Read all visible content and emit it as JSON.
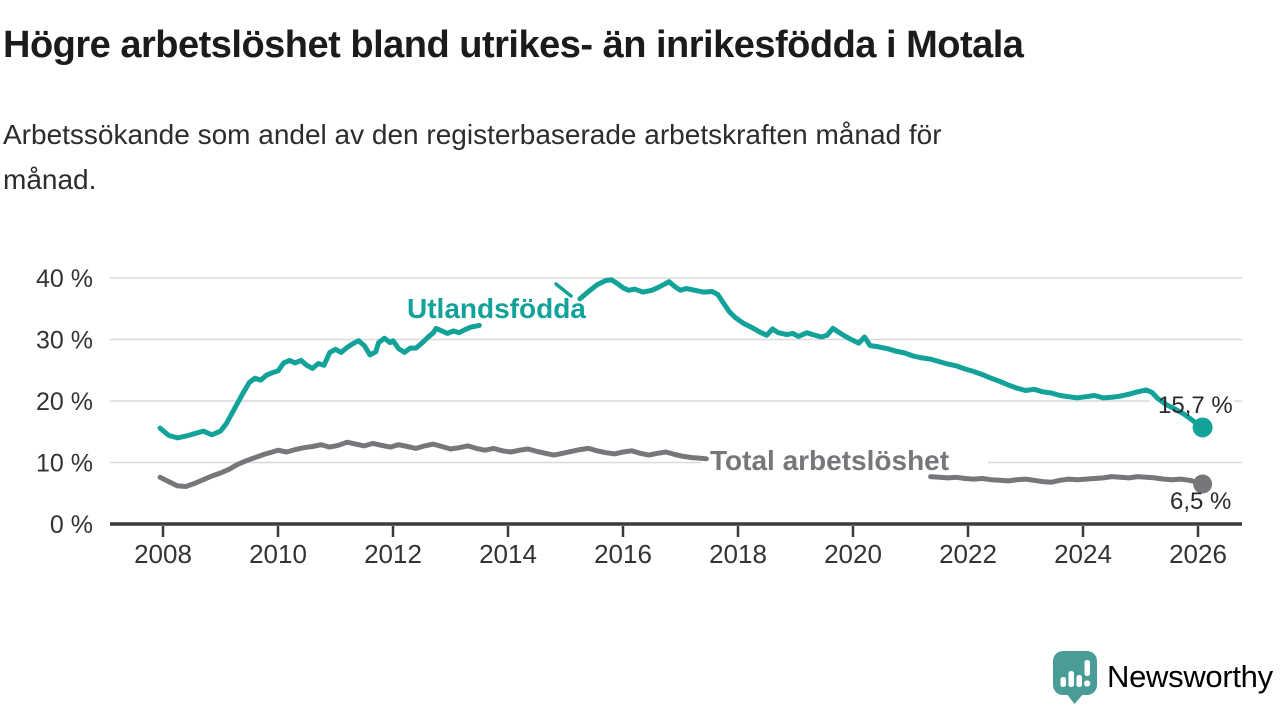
{
  "header": {
    "title": "Högre arbetslöshet bland utrikes- än inrikesfödda i Motala",
    "subtitle_lines": [
      "Arbetssökande som andel av den registerbaserade arbetskraften månad för",
      "månad."
    ]
  },
  "footer": {
    "brand": "Newsworthy",
    "brand_color": "#4a9c96"
  },
  "chart_data": {
    "type": "line",
    "title": "Högre arbetslöshet bland utrikes- än inrikesfödda i Motala",
    "xlabel": "",
    "ylabel": "",
    "grid": "horizontal",
    "legend_position": "inline-labels",
    "xlim": [
      2007.8,
      2026.8
    ],
    "ylim": [
      0,
      42
    ],
    "x_ticks": [
      2008,
      2010,
      2012,
      2014,
      2016,
      2018,
      2020,
      2022,
      2024,
      2026
    ],
    "y_ticks": [
      {
        "value": 0,
        "label": "0 %"
      },
      {
        "value": 10,
        "label": "10 %"
      },
      {
        "value": 20,
        "label": "20 %"
      },
      {
        "value": 30,
        "label": "30 %"
      },
      {
        "value": 40,
        "label": "40 %"
      }
    ],
    "axis_color": "#3a3a3a",
    "grid_color": "#d9d9d9",
    "series": [
      {
        "name": "Utlandsfödda",
        "color": "#13a299",
        "end_value": 15.7,
        "end_label": "15,7 %",
        "segments": [
          [
            [
              2007.95,
              15.6
            ],
            [
              2008.1,
              14.4
            ],
            [
              2008.25,
              14.0
            ],
            [
              2008.4,
              14.3
            ],
            [
              2008.55,
              14.7
            ],
            [
              2008.7,
              15.1
            ],
            [
              2008.85,
              14.5
            ],
            [
              2009.0,
              15.1
            ],
            [
              2009.1,
              16.3
            ],
            [
              2009.2,
              18.0
            ],
            [
              2009.3,
              19.7
            ],
            [
              2009.4,
              21.4
            ],
            [
              2009.5,
              23.0
            ],
            [
              2009.6,
              23.7
            ],
            [
              2009.7,
              23.4
            ],
            [
              2009.8,
              24.2
            ],
            [
              2009.9,
              24.6
            ],
            [
              2010.0,
              24.9
            ],
            [
              2010.1,
              26.2
            ],
            [
              2010.2,
              26.6
            ],
            [
              2010.3,
              26.2
            ],
            [
              2010.4,
              26.6
            ],
            [
              2010.5,
              25.8
            ],
            [
              2010.6,
              25.3
            ],
            [
              2010.7,
              26.1
            ],
            [
              2010.8,
              25.8
            ],
            [
              2010.9,
              27.9
            ],
            [
              2011.0,
              28.4
            ],
            [
              2011.1,
              27.9
            ],
            [
              2011.2,
              28.7
            ],
            [
              2011.3,
              29.3
            ],
            [
              2011.4,
              29.8
            ],
            [
              2011.5,
              29.0
            ],
            [
              2011.6,
              27.5
            ],
            [
              2011.7,
              28.0
            ],
            [
              2011.75,
              29.5
            ],
            [
              2011.85,
              30.2
            ],
            [
              2011.95,
              29.5
            ],
            [
              2012.0,
              29.8
            ],
            [
              2012.1,
              28.5
            ],
            [
              2012.2,
              27.9
            ],
            [
              2012.3,
              28.6
            ],
            [
              2012.4,
              28.6
            ],
            [
              2012.5,
              29.4
            ],
            [
              2012.6,
              30.3
            ],
            [
              2012.7,
              31.1
            ],
            [
              2012.75,
              31.8
            ],
            [
              2012.85,
              31.4
            ],
            [
              2012.95,
              31.0
            ],
            [
              2013.05,
              31.4
            ],
            [
              2013.15,
              31.1
            ],
            [
              2013.25,
              31.6
            ],
            [
              2013.35,
              32.0
            ],
            [
              2013.5,
              32.3
            ]
          ],
          [
            [
              2015.25,
              36.6
            ],
            [
              2015.4,
              37.8
            ],
            [
              2015.55,
              38.9
            ],
            [
              2015.7,
              39.6
            ],
            [
              2015.8,
              39.7
            ],
            [
              2015.9,
              39.1
            ],
            [
              2016.0,
              38.4
            ],
            [
              2016.1,
              38.0
            ],
            [
              2016.2,
              38.2
            ],
            [
              2016.35,
              37.7
            ],
            [
              2016.5,
              38.0
            ],
            [
              2016.6,
              38.4
            ],
            [
              2016.7,
              38.9
            ],
            [
              2016.8,
              39.4
            ],
            [
              2016.9,
              38.6
            ],
            [
              2017.0,
              38.0
            ],
            [
              2017.1,
              38.3
            ],
            [
              2017.25,
              38.0
            ],
            [
              2017.4,
              37.7
            ],
            [
              2017.55,
              37.8
            ],
            [
              2017.65,
              37.3
            ],
            [
              2017.75,
              35.9
            ],
            [
              2017.85,
              34.5
            ],
            [
              2017.95,
              33.6
            ],
            [
              2018.1,
              32.6
            ],
            [
              2018.25,
              31.9
            ],
            [
              2018.4,
              31.1
            ],
            [
              2018.5,
              30.7
            ],
            [
              2018.6,
              31.7
            ],
            [
              2018.7,
              31.1
            ],
            [
              2018.85,
              30.8
            ],
            [
              2018.95,
              31.0
            ],
            [
              2019.05,
              30.5
            ],
            [
              2019.2,
              31.1
            ],
            [
              2019.3,
              30.8
            ],
            [
              2019.45,
              30.4
            ],
            [
              2019.55,
              30.7
            ],
            [
              2019.65,
              31.8
            ],
            [
              2019.75,
              31.2
            ],
            [
              2019.85,
              30.6
            ],
            [
              2019.95,
              30.1
            ],
            [
              2020.1,
              29.4
            ],
            [
              2020.2,
              30.4
            ],
            [
              2020.3,
              29.0
            ],
            [
              2020.45,
              28.8
            ],
            [
              2020.6,
              28.5
            ],
            [
              2020.75,
              28.1
            ],
            [
              2020.9,
              27.8
            ],
            [
              2021.05,
              27.3
            ],
            [
              2021.2,
              27.0
            ],
            [
              2021.35,
              26.8
            ],
            [
              2021.5,
              26.4
            ],
            [
              2021.65,
              26.0
            ],
            [
              2021.8,
              25.7
            ],
            [
              2021.95,
              25.2
            ],
            [
              2022.1,
              24.8
            ],
            [
              2022.25,
              24.3
            ],
            [
              2022.4,
              23.7
            ],
            [
              2022.55,
              23.2
            ],
            [
              2022.7,
              22.6
            ],
            [
              2022.85,
              22.1
            ],
            [
              2023.0,
              21.7
            ],
            [
              2023.15,
              21.9
            ],
            [
              2023.3,
              21.5
            ],
            [
              2023.45,
              21.3
            ],
            [
              2023.6,
              20.9
            ],
            [
              2023.75,
              20.7
            ],
            [
              2023.9,
              20.5
            ],
            [
              2024.05,
              20.7
            ],
            [
              2024.2,
              20.9
            ],
            [
              2024.35,
              20.5
            ],
            [
              2024.5,
              20.6
            ],
            [
              2024.65,
              20.8
            ],
            [
              2024.8,
              21.1
            ],
            [
              2024.95,
              21.5
            ],
            [
              2025.1,
              21.8
            ],
            [
              2025.2,
              21.4
            ],
            [
              2025.3,
              20.4
            ],
            [
              2025.45,
              19.4
            ],
            [
              2025.6,
              18.7
            ],
            [
              2025.75,
              17.9
            ],
            [
              2025.9,
              16.9
            ],
            [
              2026.0,
              16.1
            ],
            [
              2026.08,
              15.7
            ]
          ]
        ]
      },
      {
        "name": "Total arbetslöshet",
        "color": "#76777b",
        "end_value": 6.5,
        "end_label": "6,5 %",
        "segments": [
          [
            [
              2007.95,
              7.6
            ],
            [
              2008.1,
              6.9
            ],
            [
              2008.25,
              6.2
            ],
            [
              2008.4,
              6.1
            ],
            [
              2008.55,
              6.6
            ],
            [
              2008.7,
              7.2
            ],
            [
              2008.85,
              7.8
            ],
            [
              2009.0,
              8.3
            ],
            [
              2009.15,
              8.9
            ],
            [
              2009.3,
              9.7
            ],
            [
              2009.45,
              10.3
            ],
            [
              2009.6,
              10.8
            ],
            [
              2009.75,
              11.3
            ],
            [
              2009.9,
              11.7
            ],
            [
              2010.0,
              12.0
            ],
            [
              2010.15,
              11.7
            ],
            [
              2010.3,
              12.1
            ],
            [
              2010.45,
              12.4
            ],
            [
              2010.6,
              12.6
            ],
            [
              2010.75,
              12.9
            ],
            [
              2010.9,
              12.5
            ],
            [
              2011.05,
              12.8
            ],
            [
              2011.2,
              13.3
            ],
            [
              2011.35,
              13.0
            ],
            [
              2011.5,
              12.7
            ],
            [
              2011.65,
              13.1
            ],
            [
              2011.8,
              12.8
            ],
            [
              2011.95,
              12.5
            ],
            [
              2012.1,
              12.9
            ],
            [
              2012.25,
              12.6
            ],
            [
              2012.4,
              12.3
            ],
            [
              2012.55,
              12.7
            ],
            [
              2012.7,
              13.0
            ],
            [
              2012.85,
              12.6
            ],
            [
              2013.0,
              12.2
            ],
            [
              2013.15,
              12.4
            ],
            [
              2013.3,
              12.7
            ],
            [
              2013.45,
              12.3
            ],
            [
              2013.6,
              12.0
            ],
            [
              2013.75,
              12.3
            ],
            [
              2013.9,
              11.9
            ],
            [
              2014.05,
              11.7
            ],
            [
              2014.2,
              12.0
            ],
            [
              2014.35,
              12.2
            ],
            [
              2014.5,
              11.8
            ],
            [
              2014.65,
              11.5
            ],
            [
              2014.8,
              11.2
            ],
            [
              2014.95,
              11.5
            ],
            [
              2015.1,
              11.8
            ],
            [
              2015.25,
              12.1
            ],
            [
              2015.4,
              12.3
            ],
            [
              2015.55,
              11.9
            ],
            [
              2015.7,
              11.6
            ],
            [
              2015.85,
              11.4
            ],
            [
              2016.0,
              11.7
            ],
            [
              2016.15,
              11.9
            ],
            [
              2016.3,
              11.5
            ],
            [
              2016.45,
              11.2
            ],
            [
              2016.6,
              11.5
            ],
            [
              2016.75,
              11.7
            ],
            [
              2016.9,
              11.3
            ],
            [
              2017.05,
              11.0
            ],
            [
              2017.2,
              10.8
            ],
            [
              2017.35,
              10.7
            ],
            [
              2017.45,
              10.6
            ]
          ],
          [
            [
              2021.35,
              7.7
            ],
            [
              2021.5,
              7.6
            ],
            [
              2021.65,
              7.5
            ],
            [
              2021.8,
              7.6
            ],
            [
              2021.95,
              7.4
            ],
            [
              2022.1,
              7.3
            ],
            [
              2022.25,
              7.4
            ],
            [
              2022.4,
              7.2
            ],
            [
              2022.55,
              7.1
            ],
            [
              2022.7,
              7.0
            ],
            [
              2022.85,
              7.2
            ],
            [
              2023.0,
              7.3
            ],
            [
              2023.15,
              7.1
            ],
            [
              2023.3,
              6.9
            ],
            [
              2023.45,
              6.8
            ],
            [
              2023.6,
              7.1
            ],
            [
              2023.75,
              7.3
            ],
            [
              2023.9,
              7.2
            ],
            [
              2024.05,
              7.3
            ],
            [
              2024.2,
              7.4
            ],
            [
              2024.35,
              7.5
            ],
            [
              2024.5,
              7.7
            ],
            [
              2024.65,
              7.6
            ],
            [
              2024.8,
              7.5
            ],
            [
              2024.95,
              7.7
            ],
            [
              2025.1,
              7.6
            ],
            [
              2025.25,
              7.5
            ],
            [
              2025.4,
              7.3
            ],
            [
              2025.55,
              7.2
            ],
            [
              2025.7,
              7.3
            ],
            [
              2025.85,
              7.1
            ],
            [
              2026.0,
              6.8
            ],
            [
              2026.08,
              6.5
            ]
          ]
        ]
      }
    ]
  }
}
